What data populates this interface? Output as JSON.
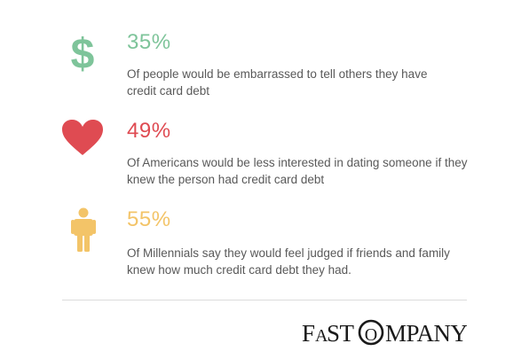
{
  "stats": [
    {
      "percent": "35%",
      "text": "Of people would be embarrassed to tell others they have credit card debt",
      "icon": "dollar-sign-icon",
      "color": "#7ec49a"
    },
    {
      "percent": "49%",
      "text": "Of Americans would be less interested in dating someone if they knew the person had credit card debt",
      "icon": "heart-icon",
      "color": "#df4b52"
    },
    {
      "percent": "55%",
      "text": "Of Millennials say they would feel judged if friends and family knew how much credit card debt they had.",
      "icon": "person-icon",
      "color": "#f3c468"
    }
  ],
  "footer": {
    "logo_text": "FASTCOMPANY"
  }
}
